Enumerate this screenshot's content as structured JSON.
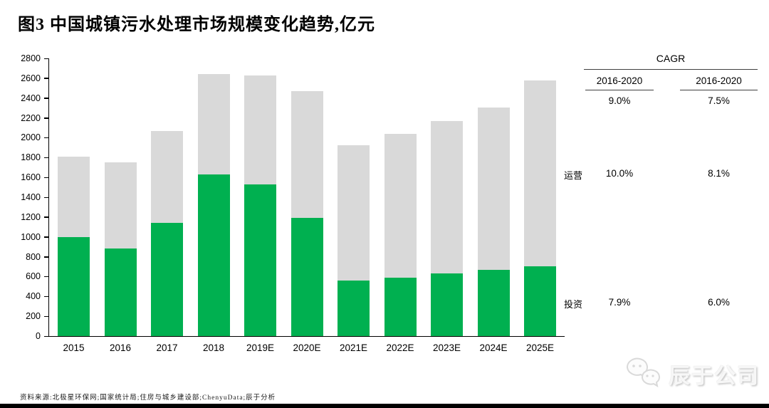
{
  "title": "图3 中国城镇污水处理市场规模变化趋势,亿元",
  "chart_data": {
    "type": "bar",
    "stacked": true,
    "title": "中国城镇污水处理市场规模变化趋势",
    "unit": "亿元",
    "categories": [
      "2015",
      "2016",
      "2017",
      "2018",
      "2019E",
      "2020E",
      "2021E",
      "2022E",
      "2023E",
      "2024E",
      "2025E"
    ],
    "series": [
      {
        "name": "投资",
        "color": "#00B050",
        "values": [
          1000,
          880,
          1140,
          1630,
          1530,
          1190,
          560,
          590,
          630,
          665,
          705
        ]
      },
      {
        "name": "运营",
        "color": "#D9D9D9",
        "values": [
          810,
          870,
          930,
          1010,
          1100,
          1280,
          1365,
          1450,
          1540,
          1640,
          1870
        ]
      }
    ],
    "totals": [
      1810,
      1750,
      2070,
      2640,
      2630,
      2470,
      1925,
      2040,
      2170,
      2305,
      2575
    ],
    "ylim": [
      0,
      2800
    ],
    "ytick_step": 200,
    "grid": false,
    "legend": "none"
  },
  "cagr_table": {
    "title": "CAGR",
    "columns": [
      "2016-2020",
      "2016-2020"
    ],
    "total_row": {
      "values": [
        "9.0%",
        "7.5%"
      ]
    },
    "rows": [
      {
        "label": "运营",
        "values": [
          "10.0%",
          "8.1%"
        ]
      },
      {
        "label": "投资",
        "values": [
          "7.9%",
          "6.0%"
        ]
      }
    ]
  },
  "watermark": {
    "brand": "辰于公司",
    "icon": "wechat-bubbles-icon"
  },
  "source_note": "资料来源:北极星环保网;国家统计局;住房与城乡建设部;ChenyuData;辰于分析",
  "colors": {
    "invest_green": "#00B050",
    "operate_gray": "#D9D9D9",
    "axis": "#000000",
    "table_line": "#404040"
  }
}
